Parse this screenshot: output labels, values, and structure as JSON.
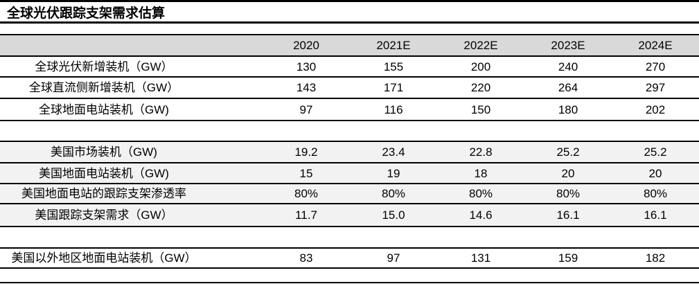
{
  "page": {
    "title": "全球光伏跟踪支架需求估算"
  },
  "colors": {
    "header_bg": "#d9d9d9",
    "us_section_bg": "#f2f2f2",
    "rule": "#000000",
    "text": "#000000",
    "background": "#ffffff"
  },
  "chart_data": {
    "type": "table",
    "title": "全球光伏跟踪支架需求估算",
    "columns": [
      "2020",
      "2021E",
      "2022E",
      "2023E",
      "2024E"
    ],
    "sections": [
      {
        "name": "global",
        "rows": [
          {
            "label": "全球光伏新增装机（GW）",
            "values": [
              "130",
              "155",
              "200",
              "240",
              "270"
            ]
          },
          {
            "label": "全球直流侧新增装机（GW）",
            "values": [
              "143",
              "171",
              "220",
              "264",
              "297"
            ]
          },
          {
            "label": "全球地面电站装机（GW)",
            "values": [
              "97",
              "116",
              "150",
              "180",
              "202"
            ]
          }
        ]
      },
      {
        "name": "us",
        "rows": [
          {
            "label": "美国市场装机（GW)",
            "values": [
              "19.2",
              "23.4",
              "22.8",
              "25.2",
              "25.2"
            ]
          },
          {
            "label": "美国地面电站装机（GW)",
            "values": [
              "15",
              "19",
              "18",
              "20",
              "20"
            ]
          },
          {
            "label": "美国地面电站的跟踪支架渗透率",
            "values": [
              "80%",
              "80%",
              "80%",
              "80%",
              "80%"
            ]
          },
          {
            "label": "美国跟踪支架需求（GW）",
            "values": [
              "11.7",
              "15.0",
              "14.6",
              "16.1",
              "16.1"
            ]
          }
        ]
      },
      {
        "name": "ex-us",
        "rows": [
          {
            "label": "美国以外地区地面电站装机（GW）",
            "values": [
              "83",
              "97",
              "131",
              "159",
              "182"
            ]
          }
        ]
      }
    ]
  }
}
